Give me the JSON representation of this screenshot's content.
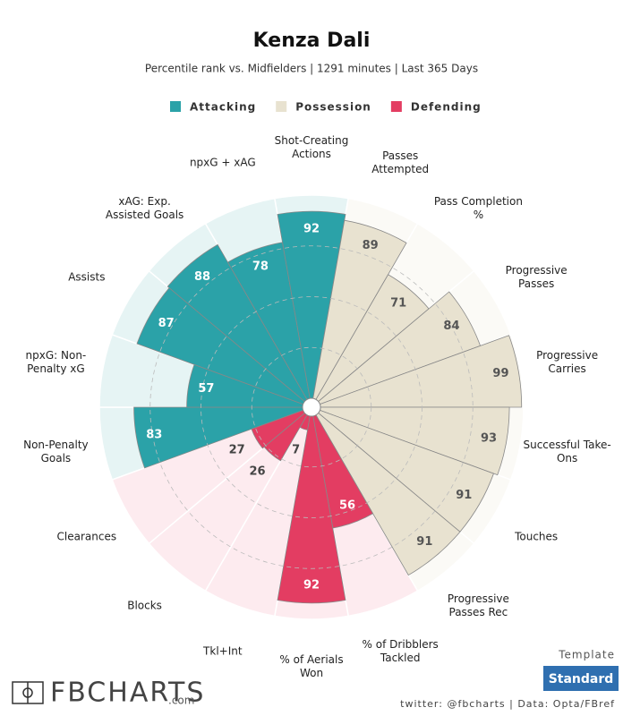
{
  "chart_data": {
    "type": "pizza",
    "title": "Kenza Dali",
    "subtitle": "Percentile rank vs. Midfielders | 1291 minutes | Last 365 Days",
    "ylim": [
      0,
      100
    ],
    "yticks": [
      25,
      50,
      75
    ],
    "grid": true,
    "series": [
      {
        "name": "Attacking",
        "color": "#2ba2a8",
        "background": "#e6f4f4",
        "categories": [
          "Non-Penalty Goals",
          "npxG: Non-Penalty xG",
          "Assists",
          "xAG: Exp. Assisted Goals",
          "npxG + xAG",
          "Shot-Creating Actions"
        ],
        "values": [
          83,
          57,
          87,
          88,
          78,
          92
        ]
      },
      {
        "name": "Possession",
        "color": "#e8e2d0",
        "background": "#fbfaf6",
        "categories": [
          "Passes Attempted",
          "Pass Completion %",
          "Progressive Passes",
          "Progressive Carries",
          "Successful Take-Ons",
          "Touches",
          "Progressive Passes Rec"
        ],
        "values": [
          89,
          71,
          84,
          99,
          93,
          91,
          91
        ]
      },
      {
        "name": "Defending",
        "color": "#e33d62",
        "background": "#fdebef",
        "categories": [
          "% of Dribblers Tackled",
          "% of Aerials Won",
          "Tkl+Int",
          "Blocks",
          "Clearances"
        ],
        "values": [
          56,
          92,
          7,
          26,
          27
        ]
      }
    ]
  },
  "footer": {
    "logo": "FBCHARTS",
    "logo_suffix": ".com",
    "template": "Template",
    "button": "Standard",
    "credit": "twitter: @fbcharts | Data: Opta/FBref"
  }
}
